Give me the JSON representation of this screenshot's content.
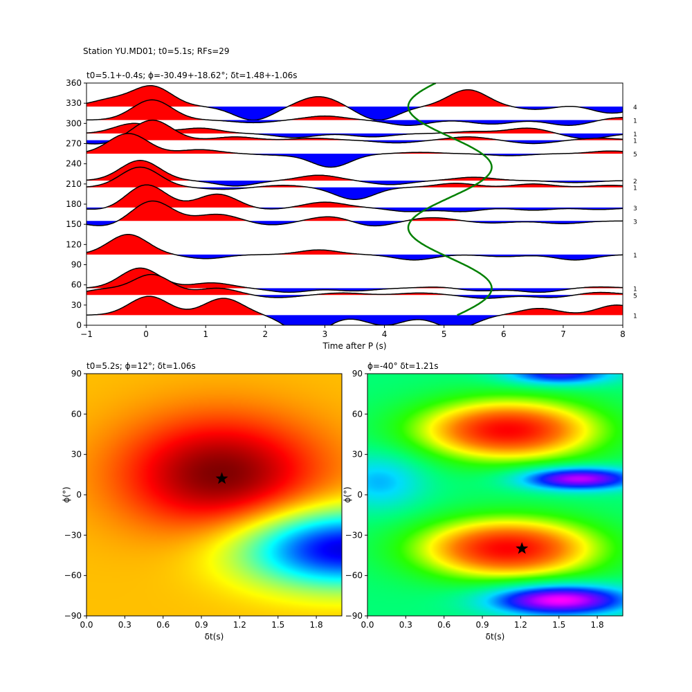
{
  "figure": {
    "suptitle": "Station YU.MD01; t0=5.1s; RFs=29"
  },
  "chart_data": [
    {
      "type": "line",
      "subplot": "receiver-function-traces",
      "title": "t0=5.1+-0.4s; ϕ=-30.49+-18.62°; δt=1.48+-1.06s",
      "xlabel": "Time after P (s)",
      "ylabel": "",
      "xlim": [
        -1,
        8
      ],
      "ylim": [
        0,
        360
      ],
      "xticks": [
        -1,
        0,
        1,
        2,
        3,
        4,
        5,
        6,
        7,
        8
      ],
      "yticks": [
        0,
        30,
        60,
        90,
        120,
        150,
        180,
        210,
        240,
        270,
        300,
        330,
        360
      ],
      "fill_positive_color": "#ff0000",
      "fill_negative_color": "#0000ff",
      "trace_color": "#000000",
      "curve_color": "#008000",
      "traces": [
        {
          "baz": 15,
          "count": "1",
          "peaks": [
            [
              0.05,
              28
            ],
            [
              1.3,
              25
            ],
            [
              2.7,
              -30
            ],
            [
              4.0,
              -15
            ],
            [
              5.2,
              -20
            ],
            [
              6.6,
              10
            ],
            [
              7.9,
              15
            ]
          ]
        },
        {
          "baz": 45,
          "count": "5",
          "peaks": [
            [
              -0.7,
              8
            ],
            [
              0.1,
              30
            ],
            [
              1.2,
              10
            ],
            [
              2.2,
              -4
            ],
            [
              3.3,
              3
            ],
            [
              4.6,
              3
            ],
            [
              5.7,
              -5
            ],
            [
              6.8,
              -4
            ],
            [
              7.6,
              4
            ]
          ]
        },
        {
          "baz": 55,
          "count": "1",
          "peaks": [
            [
              -0.1,
              30
            ],
            [
              1.1,
              8
            ],
            [
              2.4,
              -6
            ],
            [
              3.5,
              -4
            ],
            [
              4.9,
              2
            ],
            [
              5.6,
              -4
            ],
            [
              6.6,
              -6
            ],
            [
              7.6,
              2
            ]
          ]
        },
        {
          "baz": 105,
          "count": "1",
          "peaks": [
            [
              -0.3,
              30
            ],
            [
              1.0,
              -6
            ],
            [
              2.9,
              7
            ],
            [
              4.5,
              -8
            ],
            [
              6.0,
              -3
            ],
            [
              7.2,
              -8
            ]
          ]
        },
        {
          "baz": 155,
          "count": "3",
          "peaks": [
            [
              -0.7,
              -8
            ],
            [
              0.1,
              30
            ],
            [
              1.2,
              10
            ],
            [
              2.1,
              -6
            ],
            [
              3.1,
              7
            ],
            [
              3.8,
              -8
            ],
            [
              4.8,
              5
            ],
            [
              5.8,
              -3
            ],
            [
              7.0,
              -4
            ]
          ]
        },
        {
          "baz": 175,
          "count": "3",
          "peaks": [
            [
              -0.7,
              -4
            ],
            [
              0,
              34
            ],
            [
              1.2,
              20
            ],
            [
              2.0,
              -3
            ],
            [
              3.0,
              8
            ],
            [
              4.4,
              -6
            ],
            [
              5.3,
              -6
            ],
            [
              6.5,
              -4
            ],
            [
              7.6,
              -3
            ]
          ]
        },
        {
          "baz": 205,
          "count": "1",
          "peaks": [
            [
              -0.1,
              30
            ],
            [
              1.3,
              -3
            ],
            [
              2.3,
              3
            ],
            [
              3.5,
              -18
            ],
            [
              5.2,
              6
            ],
            [
              6.5,
              5
            ],
            [
              7.8,
              3
            ]
          ]
        },
        {
          "baz": 215,
          "count": "2",
          "peaks": [
            [
              -0.1,
              30
            ],
            [
              1.5,
              -8
            ],
            [
              2.9,
              8
            ],
            [
              4.1,
              -6
            ],
            [
              5.5,
              5
            ],
            [
              7.2,
              -3
            ]
          ]
        },
        {
          "baz": 255,
          "count": "5",
          "peaks": [
            [
              -0.3,
              30
            ],
            [
              0.9,
              6
            ],
            [
              2.2,
              -2
            ],
            [
              3.1,
              -20
            ],
            [
              4.6,
              2
            ],
            [
              6.1,
              -3
            ],
            [
              7.8,
              4
            ]
          ]
        },
        {
          "baz": 275,
          "count": "1",
          "peaks": [
            [
              -0.8,
              -6
            ],
            [
              0.1,
              30
            ],
            [
              1.5,
              5
            ],
            [
              2.8,
              3
            ],
            [
              4.2,
              -4
            ],
            [
              5.4,
              5
            ],
            [
              6.5,
              -5
            ],
            [
              7.6,
              3
            ]
          ]
        },
        {
          "baz": 285,
          "count": "1",
          "peaks": [
            [
              -0.2,
              15
            ],
            [
              0.9,
              8
            ],
            [
              2.5,
              -6
            ],
            [
              3.8,
              -5
            ],
            [
              5.5,
              3
            ],
            [
              6.4,
              8
            ],
            [
              7.4,
              -8
            ]
          ]
        },
        {
          "baz": 305,
          "count": "1",
          "peaks": [
            [
              0.1,
              30
            ],
            [
              1.8,
              -4
            ],
            [
              3.0,
              6
            ],
            [
              4.4,
              -8
            ],
            [
              5.8,
              -6
            ],
            [
              7.1,
              -8
            ],
            [
              8.0,
              4
            ]
          ]
        },
        {
          "baz": 325,
          "count": "4",
          "peaks": [
            [
              -0.6,
              10
            ],
            [
              0.1,
              30
            ],
            [
              1.8,
              -20
            ],
            [
              2.9,
              15
            ],
            [
              3.9,
              -20
            ],
            [
              5.4,
              25
            ],
            [
              6.6,
              -5
            ],
            [
              7.1,
              3
            ],
            [
              7.8,
              -10
            ]
          ]
        }
      ],
      "curve": {
        "form": "t0 + a*cos(2*(baz - phi))",
        "t0": 5.1,
        "a": 0.7,
        "phi": 55,
        "baz_range": [
          15,
          360
        ]
      }
    },
    {
      "type": "heatmap",
      "subplot": "grid-search-left",
      "title": "t0=5.2s; ϕ=12°; δt=1.06s",
      "xlabel": "δt(s)",
      "ylabel": "ϕ(°)",
      "xlim": [
        0.0,
        2.0
      ],
      "ylim": [
        -90,
        90
      ],
      "xticks": [
        "0.0",
        "0.3",
        "0.6",
        "0.9",
        "1.2",
        "1.5",
        "1.8"
      ],
      "yticks": [
        "-90",
        "-60",
        "-30",
        "0",
        "30",
        "60",
        "90"
      ],
      "colormap": "jet",
      "best": {
        "dt": 1.06,
        "phi": 12
      },
      "features": [
        {
          "kind": "max",
          "dt": 1.05,
          "phi": 15,
          "amp": 0.5,
          "sdt": 0.55,
          "sphi": 30
        },
        {
          "kind": "min",
          "dt": 2.0,
          "phi": -40,
          "amp": 0.95,
          "sdt": 0.55,
          "sphi": 20
        }
      ]
    },
    {
      "type": "heatmap",
      "subplot": "grid-search-right",
      "title": "ϕ=-40° δt=1.21s",
      "xlabel": "δt(s)",
      "ylabel": "ϕ(°)",
      "xlim": [
        0.0,
        2.0
      ],
      "ylim": [
        -90,
        90
      ],
      "xticks": [
        "0.0",
        "0.3",
        "0.6",
        "0.9",
        "1.2",
        "1.5",
        "1.8"
      ],
      "yticks": [
        "-90",
        "-60",
        "-30",
        "0",
        "30",
        "60",
        "90"
      ],
      "colormap": "hsv-like",
      "best": {
        "dt": 1.21,
        "phi": -40
      },
      "features": [
        {
          "kind": "max",
          "dt": 1.1,
          "phi": 48,
          "amp": 1.0,
          "sdt": 0.5,
          "sphi": 16
        },
        {
          "kind": "max",
          "dt": 1.1,
          "phi": -40,
          "amp": 1.0,
          "sdt": 0.5,
          "sphi": 16
        },
        {
          "kind": "min",
          "dt": 1.65,
          "phi": 12,
          "amp": 0.95,
          "sdt": 0.32,
          "sphi": 6
        },
        {
          "kind": "min",
          "dt": 1.5,
          "phi": -78,
          "amp": 1.05,
          "sdt": 0.38,
          "sphi": 8
        },
        {
          "kind": "min",
          "dt": 1.5,
          "phi": 90,
          "amp": 0.7,
          "sdt": 0.3,
          "sphi": 6
        },
        {
          "kind": "min",
          "dt": 0.1,
          "phi": 10,
          "amp": 0.35,
          "sdt": 0.25,
          "sphi": 15
        }
      ]
    }
  ]
}
